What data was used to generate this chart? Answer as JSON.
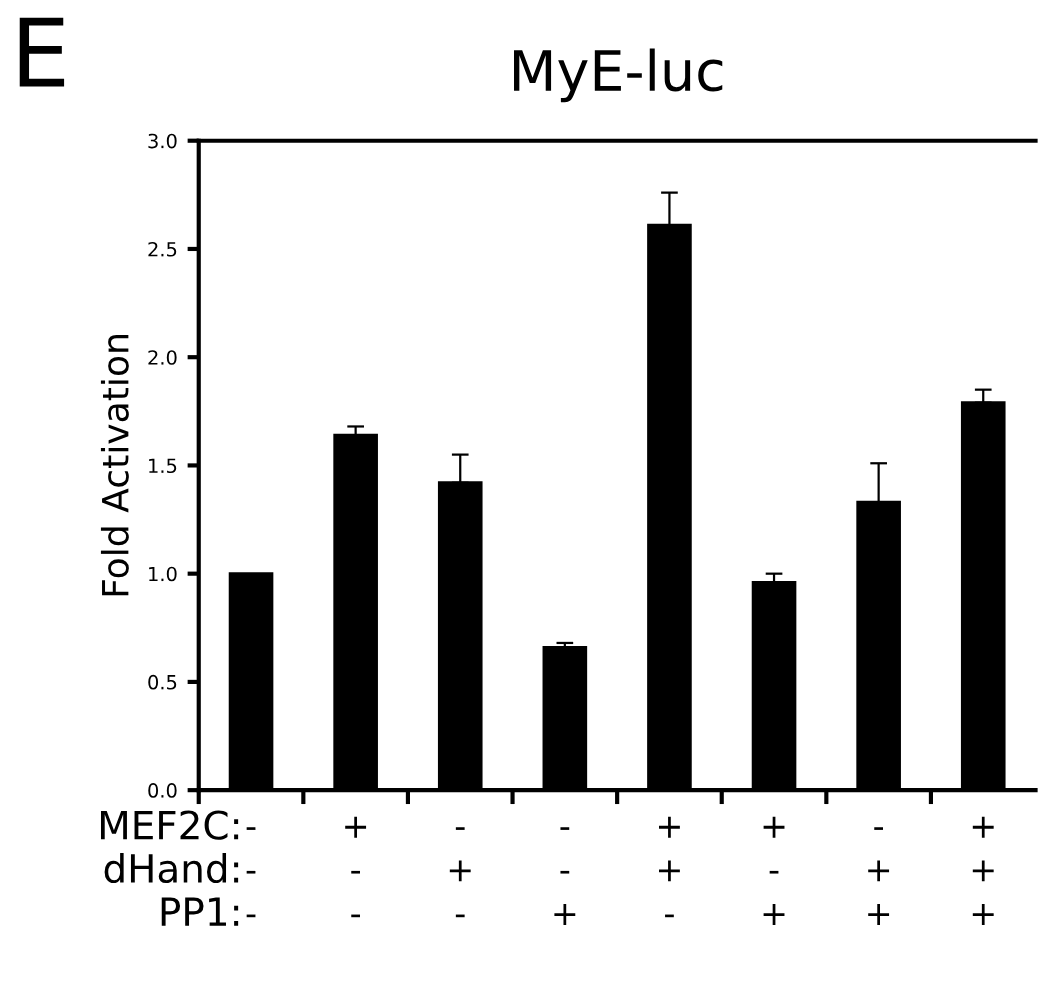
{
  "chart_data": {
    "type": "bar",
    "title": "MyE-luc",
    "ylabel": "Fold Activation",
    "categories": [
      "-\n-\n-",
      "+\n-\n-",
      "-\n+\n-",
      "-\n-\n+",
      "+\n+\n-",
      "+\n-\n+",
      "-\n+\n+",
      "+\n+\n+"
    ],
    "values": [
      1.0,
      1.64,
      1.42,
      0.66,
      2.61,
      0.96,
      1.33,
      1.79
    ],
    "errors": [
      null,
      [
        1.64,
        1.68
      ],
      [
        1.42,
        1.55
      ],
      [
        0.66,
        0.68
      ],
      [
        2.61,
        2.76
      ],
      [
        0.96,
        1.0
      ],
      [
        1.33,
        1.51
      ],
      [
        1.79,
        1.85
      ]
    ],
    "color": "#000000",
    "ylim": [
      0,
      3
    ],
    "yticks": [
      {
        "value": 0,
        "label": "0.0"
      },
      {
        "value": 0.5,
        "label": "0.5"
      },
      {
        "value": 1,
        "label": "1.0"
      },
      {
        "value": 1.5,
        "label": "1.5"
      },
      {
        "value": 2,
        "label": "2.0"
      },
      {
        "value": 2.5,
        "label": "2.5"
      },
      {
        "value": 3,
        "label": "3.0"
      }
    ],
    "grid": false,
    "legend": false,
    "annotations": [
      "E",
      "MEF2C:",
      "dHand:",
      "PP1:"
    ]
  }
}
